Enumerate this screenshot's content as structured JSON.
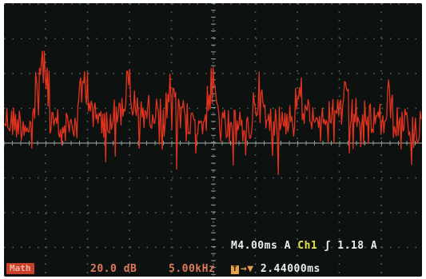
{
  "colors": {
    "trace": "#e2331e",
    "grid": "#5c6660",
    "readout_text": "#e9eef0",
    "channel_label": "#e8e24a",
    "math_badge": "#c8402a",
    "math_text": "#e07a5a",
    "trigger": "#e5a045"
  },
  "status": {
    "timebase": "M4.00ms",
    "trigger_mode": "A",
    "trigger_channel": "Ch1",
    "trigger_slope_icon": "rising-edge-icon",
    "trigger_slope_glyph": "ʃ",
    "trigger_level": "1.18 A"
  },
  "math": {
    "badge": "Math",
    "scale": "20.0 dB",
    "frequency": "5.00kHz"
  },
  "trigger": {
    "badge": "T",
    "arrow": "→▼",
    "position": "2.44000ms"
  }
}
